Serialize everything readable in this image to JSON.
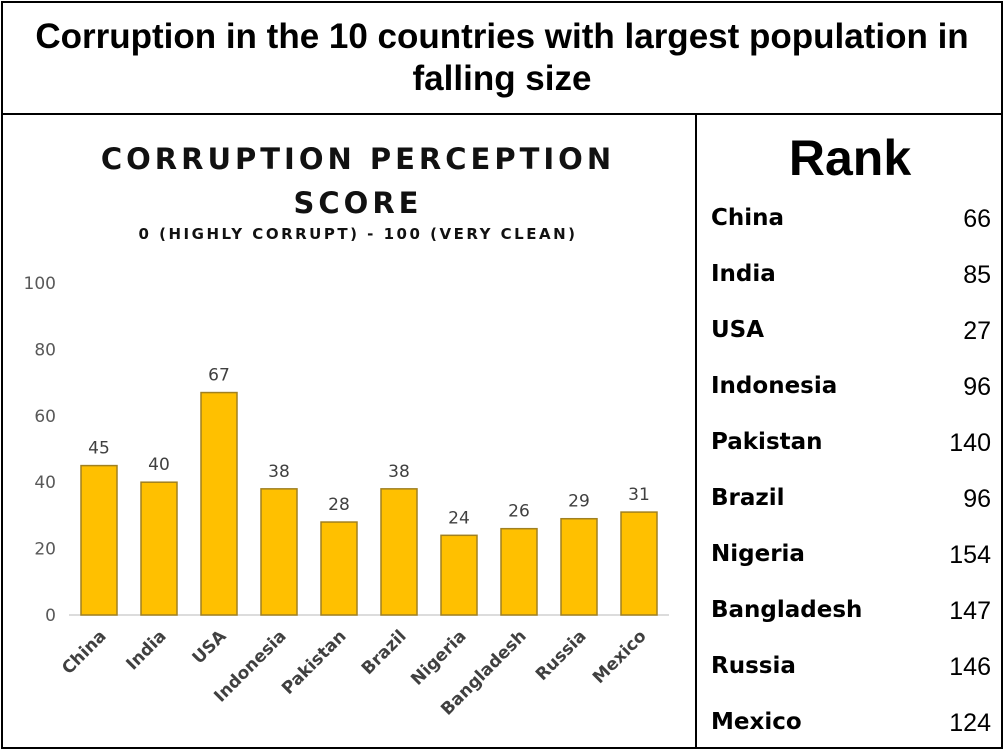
{
  "title": "Corruption in the 10 countries with largest population in falling size",
  "chart_data": {
    "type": "bar",
    "title": "CORRUPTION PERCEPTION SCORE",
    "subtitle": "0 (HIGHLY CORRUPT) - 100 (VERY CLEAN)",
    "categories": [
      "China",
      "India",
      "USA",
      "Indonesia",
      "Pakistan",
      "Brazil",
      "Nigeria",
      "Bangladesh",
      "Russia",
      "Mexico"
    ],
    "values": [
      45,
      40,
      67,
      38,
      28,
      38,
      24,
      26,
      29,
      31
    ],
    "ylim": [
      0,
      100
    ],
    "yticks": [
      "0",
      "20",
      "40",
      "60",
      "80",
      "100"
    ],
    "bar_color": "#FFC000",
    "bar_edge_color": "#A08020",
    "grid": false
  },
  "rank_table": {
    "title": "Rank",
    "rows": [
      {
        "country": "China",
        "rank": "66"
      },
      {
        "country": "India",
        "rank": "85"
      },
      {
        "country": "USA",
        "rank": "27"
      },
      {
        "country": "Indonesia",
        "rank": "96"
      },
      {
        "country": "Pakistan",
        "rank": "140"
      },
      {
        "country": "Brazil",
        "rank": "96"
      },
      {
        "country": "Nigeria",
        "rank": "154"
      },
      {
        "country": "Bangladesh",
        "rank": "147"
      },
      {
        "country": "Russia",
        "rank": "146"
      },
      {
        "country": "Mexico",
        "rank": "124"
      }
    ]
  }
}
